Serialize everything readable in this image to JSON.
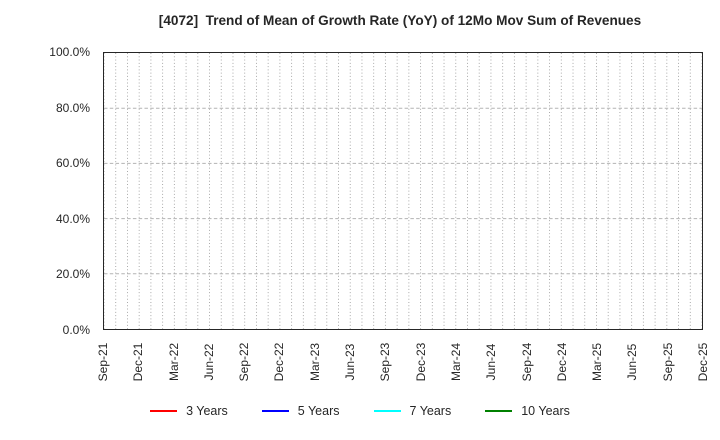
{
  "chart_data": {
    "type": "line",
    "title": "[4072]  Trend of Mean of Growth Rate (YoY) of 12Mo Mov Sum of Revenues",
    "x_tick_labels": [
      "Sep-21",
      "Dec-21",
      "Mar-22",
      "Jun-22",
      "Sep-22",
      "Dec-22",
      "Mar-23",
      "Jun-23",
      "Sep-23",
      "Dec-23",
      "Mar-24",
      "Jun-24",
      "Sep-24",
      "Dec-24",
      "Mar-25",
      "Jun-25",
      "Sep-25",
      "Dec-25"
    ],
    "y_ticks_percent": [
      0,
      20,
      40,
      60,
      80,
      100
    ],
    "y_tick_labels": [
      "0.0%",
      "20.0%",
      "40.0%",
      "60.0%",
      "80.0%",
      "100.0%"
    ],
    "ylim": [
      0,
      100
    ],
    "grid": true,
    "minor_x_grid_intervals": 51,
    "legend_position": "bottom",
    "series": [
      {
        "name": "3 Years",
        "color": "#ff0000",
        "values": []
      },
      {
        "name": "5 Years",
        "color": "#0000ff",
        "values": []
      },
      {
        "name": "7 Years",
        "color": "#00ffff",
        "values": []
      },
      {
        "name": "10 Years",
        "color": "#008000",
        "values": []
      }
    ],
    "plot_content": "empty - no data lines drawn"
  },
  "colors": {
    "background": "#ffffff",
    "axis_border": "#262626",
    "text": "#262626",
    "grid_vertical_dotted": "#a0a0a0",
    "grid_horizontal_dashed": "#b3b3b3"
  }
}
